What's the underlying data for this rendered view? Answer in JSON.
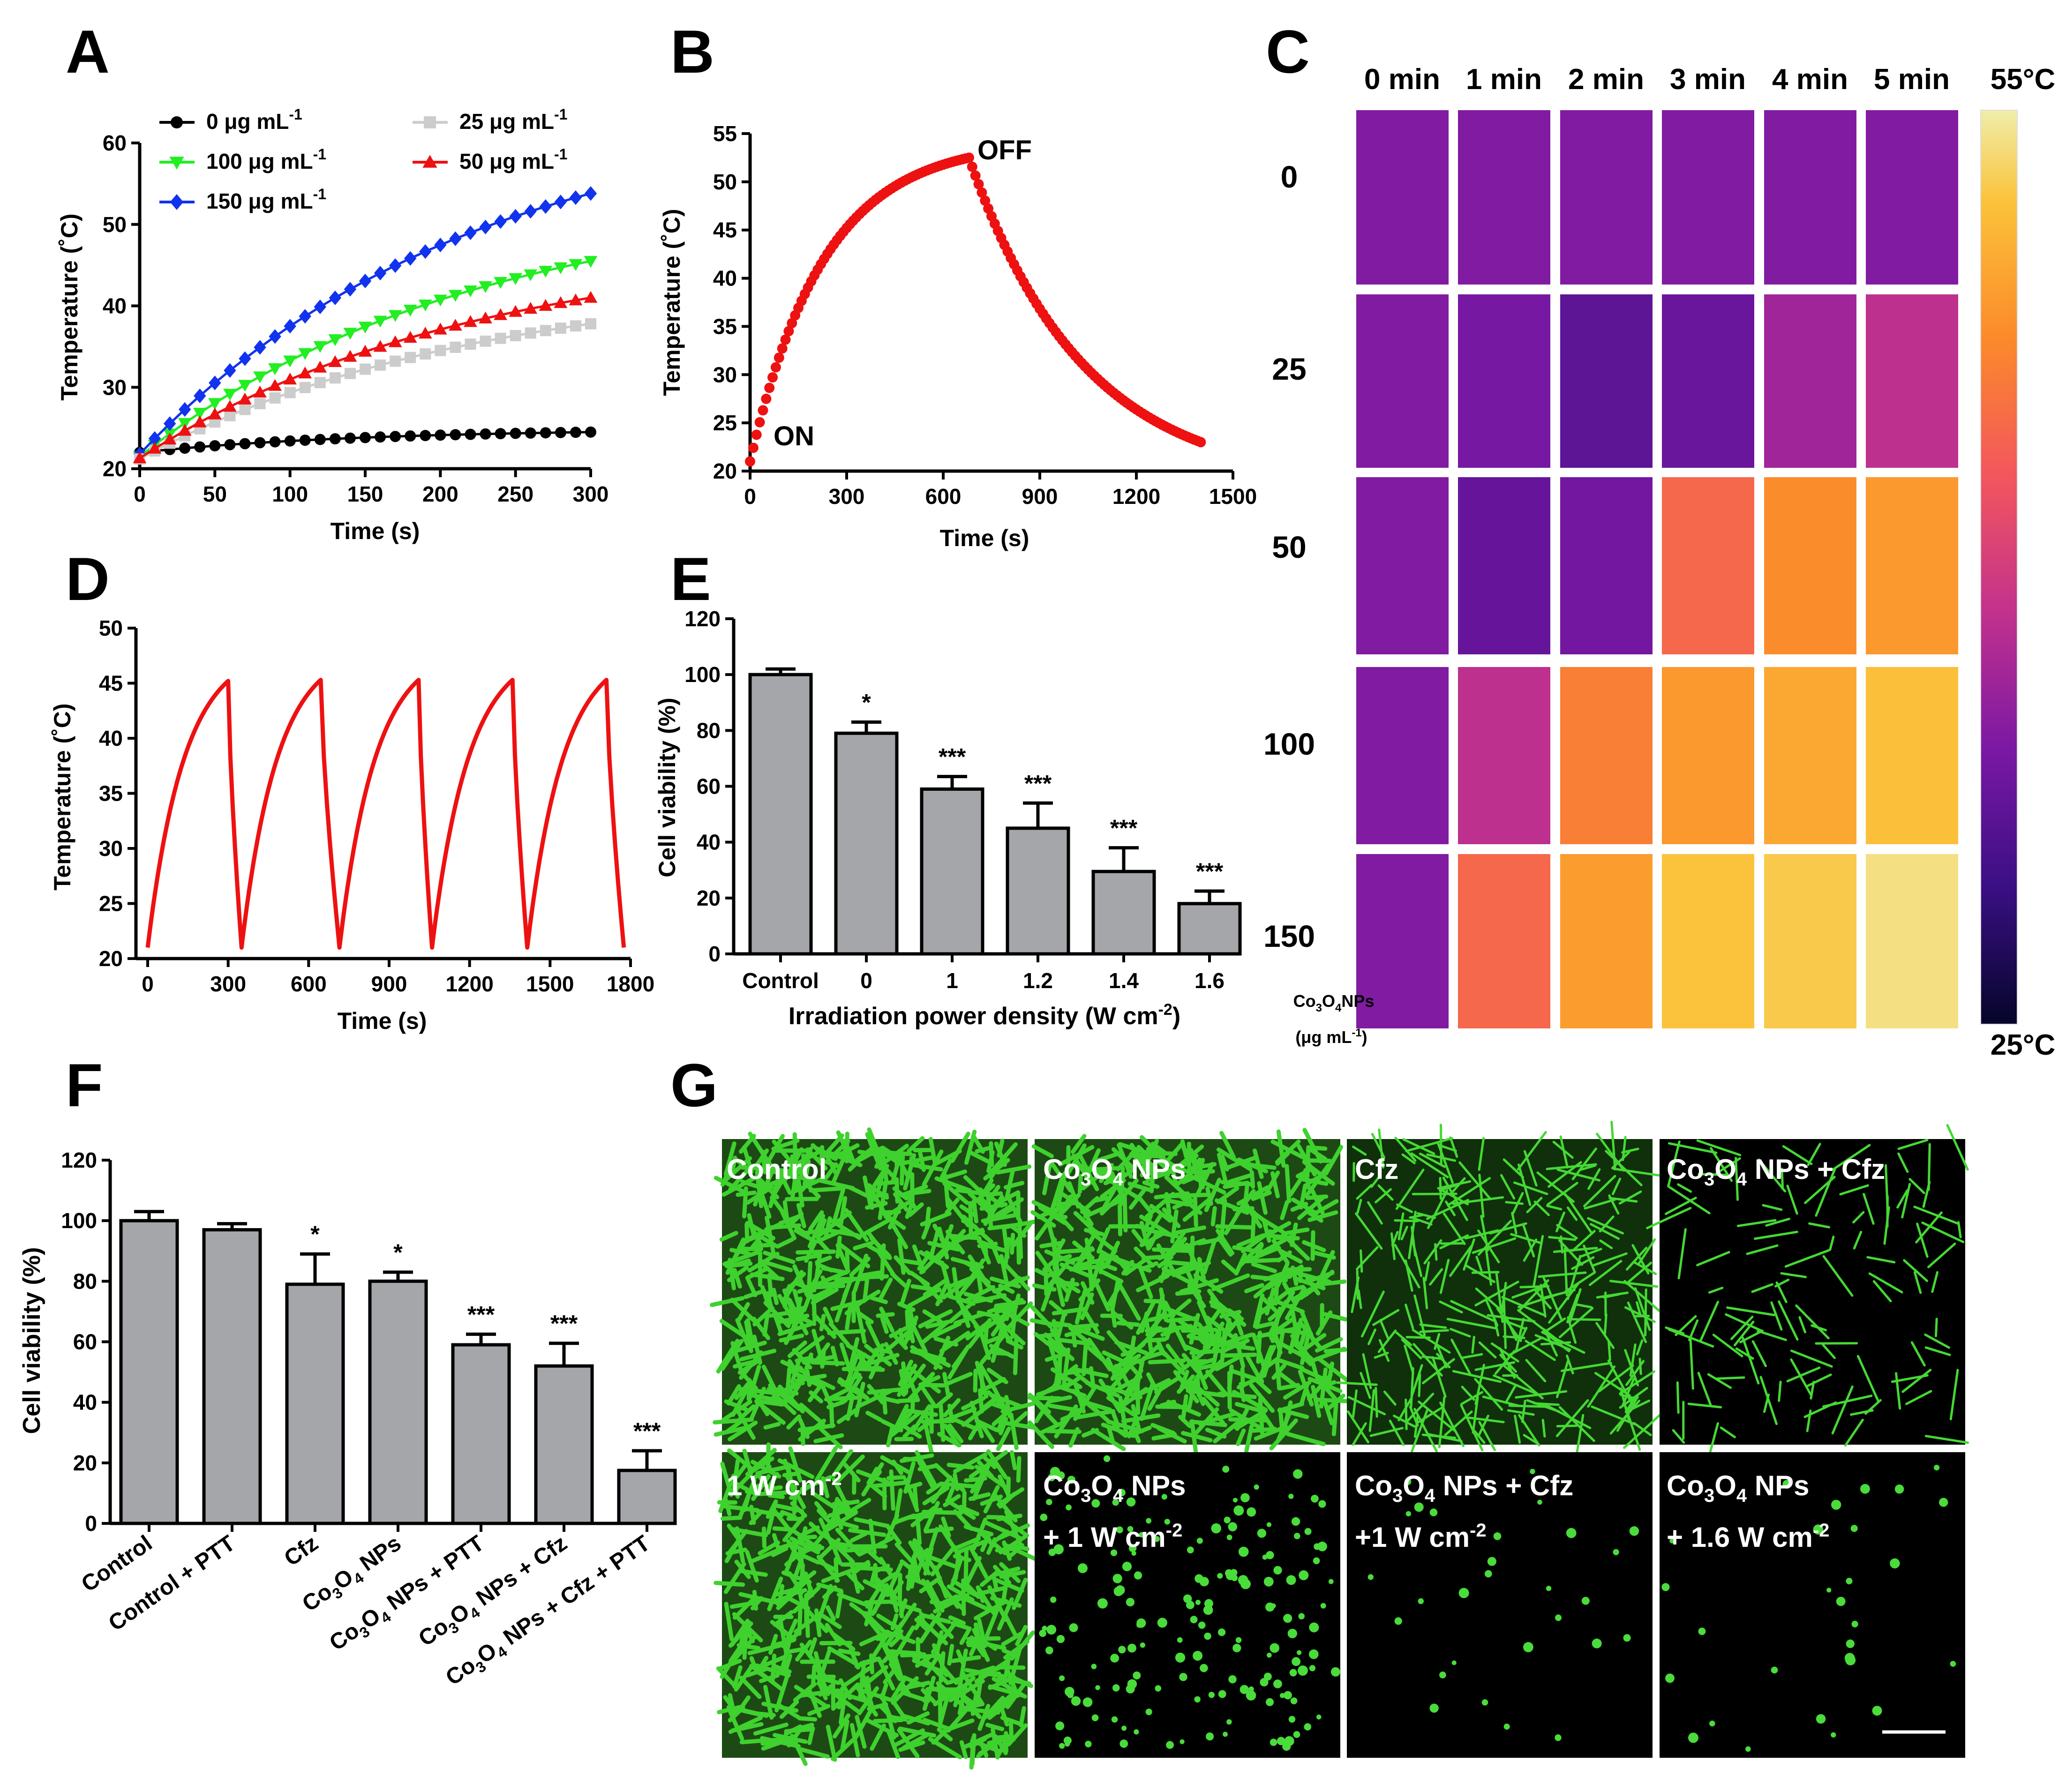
{
  "figure": {
    "panel_labels": [
      "A",
      "B",
      "C",
      "D",
      "E",
      "F",
      "G"
    ]
  },
  "chart_data": [
    {
      "panel": "A",
      "type": "line",
      "xlabel": "Time (s)",
      "ylabel": "Temperature (˚C)",
      "xlim": [
        0,
        300
      ],
      "ylim": [
        20,
        60
      ],
      "xticks": [
        0,
        50,
        100,
        150,
        200,
        250,
        300
      ],
      "yticks": [
        20,
        30,
        40,
        50,
        60
      ],
      "unit_text": "μg mL",
      "unit_exp": "-1",
      "legend_placement": "top-left, two columns",
      "series": [
        {
          "name": "0",
          "label": "0  ",
          "color": "#000000",
          "marker": "circle",
          "t0": 22.0,
          "tmax": 24.5
        },
        {
          "name": "100",
          "label": "100",
          "color": "#22ee22",
          "marker": "triangle-down",
          "t0": 21.5,
          "tmax": 45.5
        },
        {
          "name": "150",
          "label": "150",
          "color": "#1133ee",
          "marker": "diamond",
          "t0": 21.8,
          "tmax": 53.8
        },
        {
          "name": "25",
          "label": "25",
          "color": "#cccccc",
          "marker": "square",
          "t0": 21.2,
          "tmax": 37.8
        },
        {
          "name": "50",
          "label": "50",
          "color": "#ee1111",
          "marker": "triangle-up",
          "t0": 21.3,
          "tmax": 41.0
        }
      ]
    },
    {
      "panel": "B",
      "type": "scatter",
      "xlabel": "Time (s)",
      "ylabel": "Temperature (˚C)",
      "xlim": [
        0,
        1500
      ],
      "ylim": [
        20,
        55
      ],
      "xticks": [
        0,
        300,
        600,
        900,
        1200,
        1500
      ],
      "yticks": [
        20,
        25,
        30,
        35,
        40,
        45,
        50,
        55
      ],
      "color": "#ee1111",
      "annotations": [
        {
          "text": "ON",
          "at": "curve start"
        },
        {
          "text": "OFF",
          "at": "peak"
        }
      ],
      "heating": {
        "t_start": 0,
        "t_end": 680,
        "temp_start": 21.0,
        "temp_peak": 52.5
      },
      "cooling": {
        "t_end": 1400,
        "temp_end": 23.0
      }
    },
    {
      "panel": "C",
      "type": "heatmap",
      "time_labels": [
        "0 min",
        "1 min",
        "2 min",
        "3 min",
        "4 min",
        "5 min"
      ],
      "concentration_labels": [
        "0",
        "25",
        "50",
        "100",
        "150"
      ],
      "axis_label_line1": "NPs",
      "axis_label_line2": "(μg mL",
      "axis_label_line2_exp": "-1",
      "axis_label_line2_tail": ")",
      "colorbar_max": "55°C",
      "colorbar_min": "25°C",
      "colormap": [
        "#05052a",
        "#3a0f84",
        "#7a18a4",
        "#c2318d",
        "#f3565d",
        "#fb8a2a",
        "#fbc23a",
        "#f0eeaa"
      ],
      "values": [
        [
          0.3,
          0.3,
          0.3,
          0.3,
          0.3,
          0.3
        ],
        [
          0.3,
          0.28,
          0.22,
          0.25,
          0.36,
          0.42
        ],
        [
          0.3,
          0.24,
          0.27,
          0.62,
          0.72,
          0.75
        ],
        [
          0.3,
          0.42,
          0.68,
          0.75,
          0.79,
          0.85
        ],
        [
          0.3,
          0.62,
          0.76,
          0.86,
          0.88,
          0.95
        ]
      ]
    },
    {
      "panel": "D",
      "type": "line",
      "xlabel": "Time (s)",
      "ylabel": "Temperature (˚C)",
      "xlim": [
        0,
        1800
      ],
      "ylim": [
        20,
        50
      ],
      "xticks": [
        0,
        300,
        600,
        900,
        1200,
        1500,
        1800
      ],
      "yticks": [
        20,
        25,
        30,
        35,
        40,
        45,
        50
      ],
      "color": "#ee1111",
      "cycles": [
        {
          "start": 0,
          "peak_t": 300,
          "peak": 45.2,
          "min_t": 350,
          "min": 21.0
        },
        {
          "start": 350,
          "peak_t": 645,
          "peak": 45.3,
          "min_t": 715,
          "min": 21.0
        },
        {
          "start": 715,
          "peak_t": 1010,
          "peak": 45.3,
          "min_t": 1060,
          "min": 21.0
        },
        {
          "start": 1060,
          "peak_t": 1360,
          "peak": 45.3,
          "min_t": 1415,
          "min": 21.0
        },
        {
          "start": 1415,
          "peak_t": 1710,
          "peak": 45.3,
          "min_t": 1775,
          "min": 21.0
        }
      ]
    },
    {
      "panel": "E",
      "type": "bar",
      "xlabel_pre": "Irradiation power density (W cm",
      "xlabel_exp": "-2",
      "xlabel_post": ")",
      "ylabel": "Cell viability (%)",
      "ylim": [
        0,
        120
      ],
      "yticks": [
        0,
        20,
        40,
        60,
        80,
        100,
        120
      ],
      "categories": [
        "Control",
        "0",
        "1",
        "1.2",
        "1.4",
        "1.6"
      ],
      "values": [
        100,
        79,
        59,
        45,
        29.5,
        18
      ],
      "errors": [
        2,
        4,
        4.5,
        9,
        8.5,
        4.5
      ],
      "significance": [
        "",
        "*",
        "***",
        "***",
        "***",
        "***"
      ]
    },
    {
      "panel": "F",
      "type": "bar",
      "ylabel": "Cell viability (%)",
      "ylim": [
        0,
        120
      ],
      "yticks": [
        0,
        20,
        40,
        60,
        80,
        100,
        120
      ],
      "categories": [
        "Control",
        "Control + PTT",
        "Cfz",
        "Co3O4 NPs",
        "Co3O4 NPs + PTT",
        "Co3O4 NPs + Cfz",
        "Co3O4 NPs + Cfz + PTT"
      ],
      "category_parts": [
        {
          "pre": "Control",
          "post": ""
        },
        {
          "pre": "Control + PTT",
          "post": ""
        },
        {
          "pre": "Cfz",
          "post": ""
        },
        {
          "pre": "Co",
          "post": " NPs"
        },
        {
          "pre": "Co",
          "post": " NPs + PTT"
        },
        {
          "pre": "Co",
          "post": " NPs + Cfz"
        },
        {
          "pre": "Co",
          "post": " NPs + Cfz + PTT"
        }
      ],
      "values": [
        100,
        97,
        79,
        80,
        59,
        52,
        17.5
      ],
      "errors": [
        3,
        2,
        10,
        3,
        3.5,
        7.5,
        6.5
      ],
      "significance": [
        "",
        "",
        "*",
        "*",
        "***",
        "***",
        "***"
      ]
    }
  ],
  "panel_g": {
    "images": [
      {
        "label": "Control",
        "density": "high"
      },
      {
        "label": "Co3O4 NPs",
        "density": "high"
      },
      {
        "label": "Cfz",
        "density": "medium"
      },
      {
        "label": "Co3O4 NPs + Cfz",
        "density": "sparse"
      },
      {
        "label": "1 W cm-2",
        "density": "high"
      },
      {
        "label": "Co3O4 NPs + 1 W cm-2",
        "density": "medium-low"
      },
      {
        "label": "Co3O4 NPs + Cfz +1 W cm-2",
        "density": "very-sparse"
      },
      {
        "label": "Co3O4 NPs + 1.6 W cm-2",
        "density": "very-sparse"
      }
    ],
    "labels": {
      "control": "Control",
      "co": "Co",
      "sub3": "3",
      "o": "O",
      "sub4": "4",
      "nps": " NPs",
      "cfz": "Cfz",
      "plus_cfz": " + Cfz",
      "one_w": "1 W cm",
      "exp_minus2": "-2",
      "plus_one_w": "+ 1 W cm",
      "plus_one_w_nospace": "+1 W cm",
      "plus_one6_w": "+ 1.6 W cm"
    },
    "scale_bar": true
  },
  "colors": {
    "bar_fill": "#a4a6aa",
    "green": "#3cd43c",
    "red": "#ee1111"
  }
}
